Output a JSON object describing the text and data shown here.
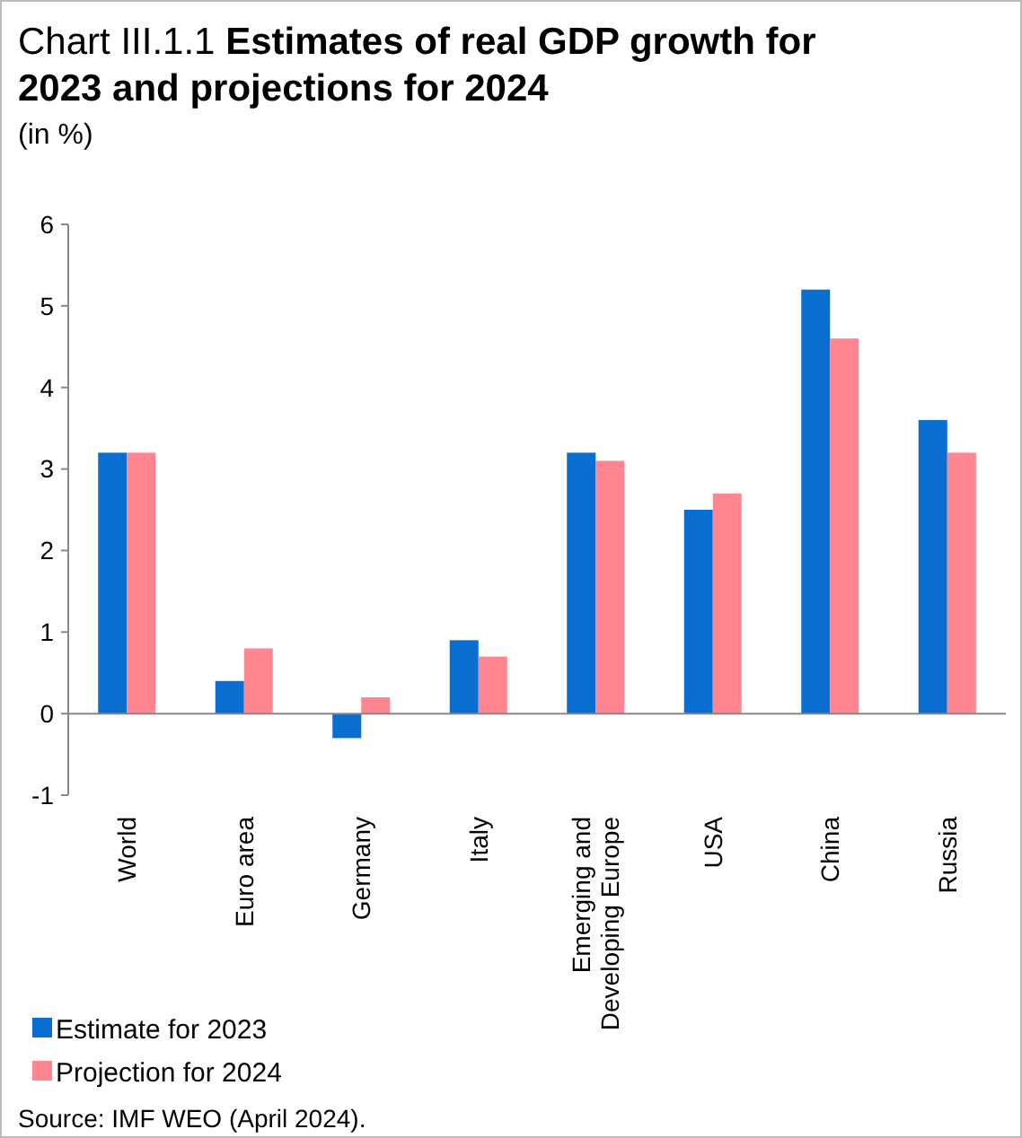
{
  "chart_data": {
    "type": "bar",
    "title": "Chart III.1.1 Estimates of real GDP growth for 2023 and projections for 2024",
    "subtitle": "(in %)",
    "categories": [
      "World",
      "Euro area",
      "Germany",
      "Italy",
      "Emerging and Developing Europe",
      "USA",
      "China",
      "Russia"
    ],
    "series": [
      {
        "name": "Estimate for 2023",
        "color": "#0a6ed1",
        "values": [
          3.2,
          0.4,
          -0.3,
          0.9,
          3.2,
          2.5,
          5.2,
          3.6
        ]
      },
      {
        "name": "Projection for 2024",
        "color": "#ff8591",
        "values": [
          3.2,
          0.8,
          0.2,
          0.7,
          3.1,
          2.7,
          4.6,
          3.2
        ]
      }
    ],
    "ylim": [
      -1,
      6
    ],
    "yticks": [
      -1,
      0,
      1,
      2,
      3,
      4,
      5,
      6
    ],
    "legend": "bottom left",
    "annotations": [
      "Source: IMF WEO (April 2024)."
    ]
  }
}
